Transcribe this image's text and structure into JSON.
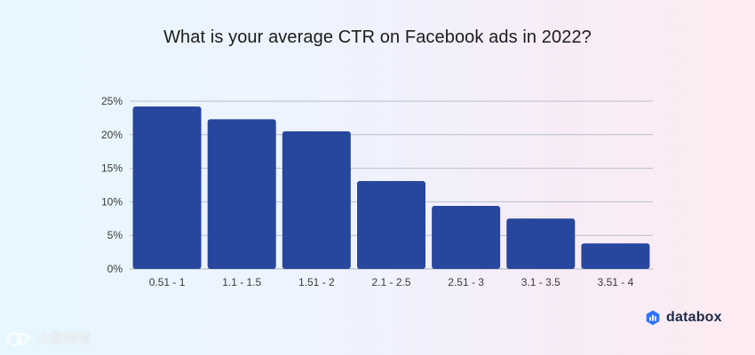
{
  "chart_data": {
    "type": "bar",
    "title": "What is your average CTR on Facebook ads in 2022?",
    "xlabel": "",
    "ylabel": "",
    "categories": [
      "0.51 - 1",
      "1.1 - 1.5",
      "1.51 - 2",
      "2.1 - 2.5",
      "2.51 - 3",
      "3.1 - 3.5",
      "3.51 - 4"
    ],
    "values": [
      24.2,
      22.3,
      20.5,
      13.1,
      9.4,
      7.5,
      3.8
    ],
    "y_ticks": [
      "0%",
      "5%",
      "10%",
      "15%",
      "20%",
      "25%"
    ],
    "ylim": [
      0,
      25
    ],
    "grid": true,
    "legend": "none",
    "colors": {
      "bar": "#27469d",
      "grid": "#b9bec8",
      "axis_text": "#3a3a3a"
    }
  },
  "brand": {
    "name": "databox",
    "icon": "databox-bars-icon",
    "color": "#1c2a4a"
  },
  "watermark": {
    "text": "大数跨境",
    "icon": "cross-border-logo-icon"
  }
}
